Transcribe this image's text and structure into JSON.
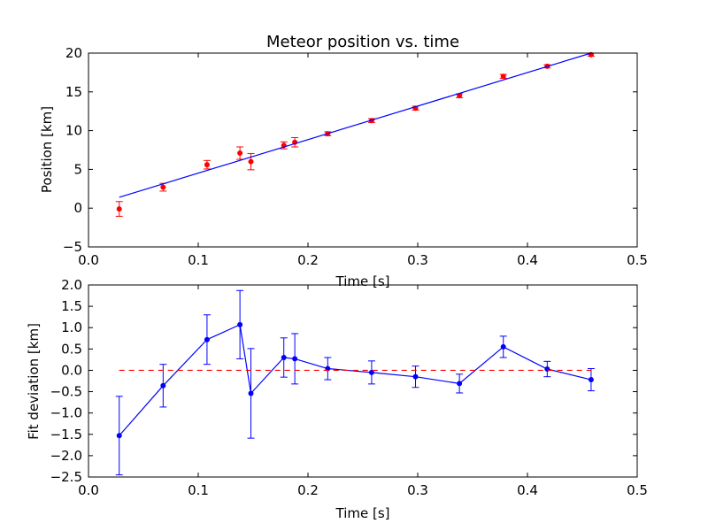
{
  "chart_data": [
    {
      "type": "scatter",
      "title": "Meteor position vs. time",
      "xlabel": "Time [s]",
      "ylabel": "Position [km]",
      "xlim": [
        0.0,
        0.5
      ],
      "ylim": [
        -5,
        20
      ],
      "xticks": [
        0.0,
        0.1,
        0.2,
        0.3,
        0.4,
        0.5
      ],
      "xtick_labels": [
        "0.0",
        "0.1",
        "0.2",
        "0.3",
        "0.4",
        "0.5"
      ],
      "yticks": [
        -5,
        0,
        5,
        10,
        15,
        20
      ],
      "ytick_labels": [
        "−5",
        "0",
        "5",
        "10",
        "15",
        "20"
      ],
      "grid": false,
      "colors": {
        "data": "#ff0000",
        "fit": "#0000ff"
      },
      "series": [
        {
          "kind": "errorbar",
          "x": [
            0.028,
            0.068,
            0.108,
            0.138,
            0.148,
            0.178,
            0.188,
            0.218,
            0.258,
            0.298,
            0.338,
            0.378,
            0.418,
            0.458
          ],
          "y": [
            -0.1,
            2.7,
            5.6,
            7.1,
            6.0,
            8.1,
            8.5,
            9.6,
            11.3,
            12.9,
            14.5,
            17.0,
            18.3,
            19.8
          ],
          "yerr": [
            0.95,
            0.5,
            0.55,
            0.8,
            1.05,
            0.45,
            0.6,
            0.25,
            0.25,
            0.25,
            0.25,
            0.25,
            0.2,
            0.2
          ]
        },
        {
          "kind": "line",
          "x": [
            0.028,
            0.458
          ],
          "y": [
            1.4,
            20.0
          ]
        }
      ]
    },
    {
      "type": "line",
      "title": "",
      "xlabel": "Time [s]",
      "ylabel": "Fit deviation [km]",
      "xlim": [
        0.0,
        0.5
      ],
      "ylim": [
        -2.5,
        2.0
      ],
      "xticks": [
        0.0,
        0.1,
        0.2,
        0.3,
        0.4,
        0.5
      ],
      "xtick_labels": [
        "0.0",
        "0.1",
        "0.2",
        "0.3",
        "0.4",
        "0.5"
      ],
      "yticks": [
        -2.5,
        -2.0,
        -1.5,
        -1.0,
        -0.5,
        0.0,
        0.5,
        1.0,
        1.5,
        2.0
      ],
      "ytick_labels": [
        "−2.5",
        "−2.0",
        "−1.5",
        "−1.0",
        "−0.5",
        "0.0",
        "0.5",
        "1.0",
        "1.5",
        "2.0"
      ],
      "grid": false,
      "colors": {
        "data": "#0000ff",
        "zero": "#ff0000"
      },
      "series": [
        {
          "kind": "errorbar-line",
          "x": [
            0.028,
            0.068,
            0.108,
            0.138,
            0.148,
            0.178,
            0.188,
            0.218,
            0.258,
            0.298,
            0.338,
            0.378,
            0.418,
            0.458
          ],
          "y": [
            -1.53,
            -0.36,
            0.72,
            1.07,
            -0.54,
            0.3,
            0.27,
            0.04,
            -0.05,
            -0.15,
            -0.31,
            0.55,
            0.03,
            -0.22
          ],
          "yerr": [
            0.92,
            0.5,
            0.58,
            0.8,
            1.05,
            0.46,
            0.59,
            0.26,
            0.27,
            0.25,
            0.22,
            0.25,
            0.18,
            0.26
          ]
        },
        {
          "kind": "dashed-line",
          "x": [
            0.028,
            0.458
          ],
          "y": [
            0.0,
            0.0
          ]
        }
      ]
    }
  ]
}
